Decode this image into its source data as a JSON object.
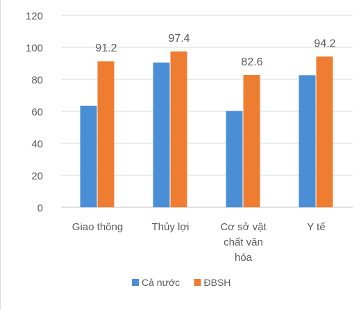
{
  "chart_data": {
    "type": "bar",
    "title": "",
    "xlabel": "",
    "ylabel": "",
    "ylim": [
      0,
      120
    ],
    "ytick_step": 20,
    "grid": true,
    "legend_position": "bottom",
    "categories": [
      [
        "Giao thông"
      ],
      [
        "Thủy lợi"
      ],
      [
        "Cơ sở vật",
        "chất văn",
        "hóa"
      ],
      [
        "Y tế"
      ]
    ],
    "series": [
      {
        "name": "Cả nước",
        "color": "#4a8fd6",
        "values": [
          63.5,
          90.5,
          60.2,
          82.5
        ],
        "labels": [
          "",
          "",
          "",
          ""
        ]
      },
      {
        "name": "ĐBSH",
        "color": "#ee7d31",
        "values": [
          91.2,
          97.4,
          82.6,
          94.2
        ],
        "labels": [
          "91.2",
          "97.4",
          "82.6",
          "94.2"
        ]
      }
    ]
  }
}
